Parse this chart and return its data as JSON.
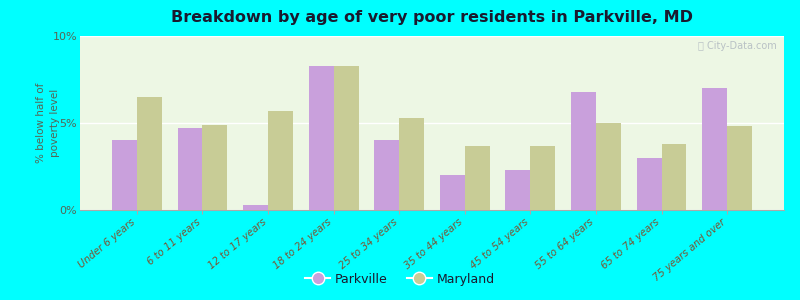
{
  "title": "Breakdown by age of very poor residents in Parkville, MD",
  "ylabel": "% below half of\npoverty level",
  "categories": [
    "Under 6 years",
    "6 to 11 years",
    "12 to 17 years",
    "18 to 24 years",
    "25 to 34 years",
    "35 to 44 years",
    "45 to 54 years",
    "55 to 64 years",
    "65 to 74 years",
    "75 years and over"
  ],
  "parkville_values": [
    4.0,
    4.7,
    0.3,
    8.3,
    4.0,
    2.0,
    2.3,
    6.8,
    3.0,
    7.0
  ],
  "maryland_values": [
    6.5,
    4.9,
    5.7,
    8.3,
    5.3,
    3.7,
    3.7,
    5.0,
    3.8,
    4.8
  ],
  "parkville_color": "#c9a0dc",
  "maryland_color": "#c8cc96",
  "background_outer": "#00ffff",
  "background_plot_top": "#e8f5e2",
  "background_plot_bottom": "#f8fff4",
  "title_color": "#1a1a2e",
  "ylabel_color": "#556655",
  "tick_label_color": "#7a5533",
  "ylim": [
    0,
    10
  ],
  "yticks": [
    0,
    5,
    10
  ],
  "ytick_labels": [
    "0%",
    "5%",
    "10%"
  ],
  "legend_parkville": "Parkville",
  "legend_maryland": "Maryland",
  "bar_width": 0.38
}
